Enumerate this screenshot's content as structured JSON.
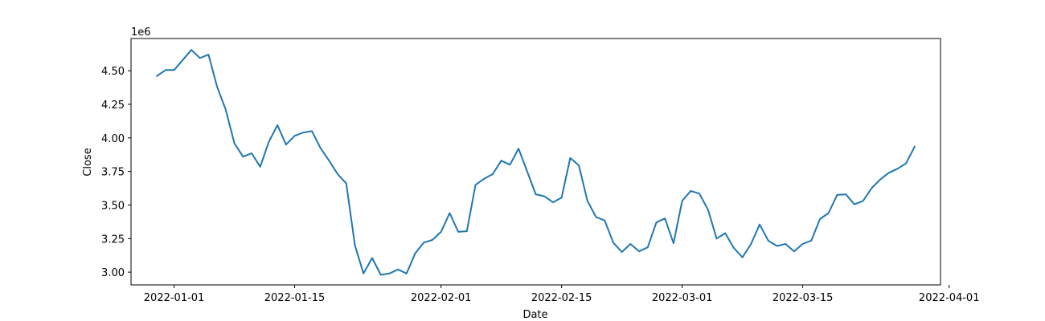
{
  "chart_data": {
    "type": "line",
    "title": "",
    "xlabel": "Date",
    "ylabel": "Close",
    "y_offset_label": "1e6",
    "x_ticks": [
      {
        "date": "2022-01-01",
        "label": "2022-01-01"
      },
      {
        "date": "2022-01-15",
        "label": "2022-01-15"
      },
      {
        "date": "2022-02-01",
        "label": "2022-02-01"
      },
      {
        "date": "2022-02-15",
        "label": "2022-02-15"
      },
      {
        "date": "2022-03-01",
        "label": "2022-03-01"
      },
      {
        "date": "2022-03-15",
        "label": "2022-03-15"
      },
      {
        "date": "2022-04-01",
        "label": "2022-04-01"
      }
    ],
    "y_ticks": [
      {
        "value": 3000000,
        "label": "3.00"
      },
      {
        "value": 3250000,
        "label": "3.25"
      },
      {
        "value": 3500000,
        "label": "3.50"
      },
      {
        "value": 3750000,
        "label": "3.75"
      },
      {
        "value": 4000000,
        "label": "4.00"
      },
      {
        "value": 4250000,
        "label": "4.25"
      },
      {
        "value": 4500000,
        "label": "4.50"
      }
    ],
    "xlim": [
      "2021-12-27",
      "2022-03-31"
    ],
    "ylim": [
      2905000,
      4740000
    ],
    "grid": false,
    "color": "#1f77b4",
    "series": [
      {
        "x": [
          "2021-12-30",
          "2021-12-31",
          "2022-01-01",
          "2022-01-02",
          "2022-01-03",
          "2022-01-04",
          "2022-01-05",
          "2022-01-06",
          "2022-01-07",
          "2022-01-08",
          "2022-01-09",
          "2022-01-10",
          "2022-01-11",
          "2022-01-12",
          "2022-01-13",
          "2022-01-14",
          "2022-01-15",
          "2022-01-16",
          "2022-01-17",
          "2022-01-18",
          "2022-01-19",
          "2022-01-20",
          "2022-01-21",
          "2022-01-22",
          "2022-01-23",
          "2022-01-24",
          "2022-01-25",
          "2022-01-26",
          "2022-01-27",
          "2022-01-28",
          "2022-01-29",
          "2022-01-30",
          "2022-01-31",
          "2022-02-01",
          "2022-02-02",
          "2022-02-03",
          "2022-02-04",
          "2022-02-05",
          "2022-02-06",
          "2022-02-07",
          "2022-02-08",
          "2022-02-09",
          "2022-02-10",
          "2022-02-11",
          "2022-02-12",
          "2022-02-13",
          "2022-02-14",
          "2022-02-15",
          "2022-02-16",
          "2022-02-17",
          "2022-02-18",
          "2022-02-19",
          "2022-02-20",
          "2022-02-21",
          "2022-02-22",
          "2022-02-23",
          "2022-02-24",
          "2022-02-25",
          "2022-02-26",
          "2022-02-27",
          "2022-02-28",
          "2022-03-01",
          "2022-03-02",
          "2022-03-03",
          "2022-03-04",
          "2022-03-05",
          "2022-03-06",
          "2022-03-07",
          "2022-03-08",
          "2022-03-09",
          "2022-03-10",
          "2022-03-11",
          "2022-03-12",
          "2022-03-13",
          "2022-03-14",
          "2022-03-15",
          "2022-03-16",
          "2022-03-17",
          "2022-03-18",
          "2022-03-19",
          "2022-03-20",
          "2022-03-21",
          "2022-03-22",
          "2022-03-23",
          "2022-03-24",
          "2022-03-25",
          "2022-03-26",
          "2022-03-27",
          "2022-03-28"
        ],
        "y": [
          4460000,
          4505000,
          4505000,
          4580000,
          4655000,
          4595000,
          4620000,
          4380000,
          4210000,
          3960000,
          3860000,
          3885000,
          3785000,
          3970000,
          4095000,
          3950000,
          4015000,
          4040000,
          4050000,
          3925000,
          3830000,
          3730000,
          3660000,
          3200000,
          2990000,
          3105000,
          2980000,
          2990000,
          3020000,
          2990000,
          3140000,
          3220000,
          3240000,
          3300000,
          3440000,
          3300000,
          3305000,
          3650000,
          3695000,
          3730000,
          3830000,
          3800000,
          3920000,
          3750000,
          3580000,
          3565000,
          3520000,
          3555000,
          3850000,
          3795000,
          3530000,
          3410000,
          3385000,
          3220000,
          3150000,
          3210000,
          3155000,
          3185000,
          3370000,
          3400000,
          3215000,
          3530000,
          3605000,
          3585000,
          3465000,
          3250000,
          3290000,
          3180000,
          3110000,
          3210000,
          3355000,
          3235000,
          3195000,
          3210000,
          3155000,
          3210000,
          3235000,
          3395000,
          3440000,
          3575000,
          3580000,
          3505000,
          3530000,
          3625000,
          3690000,
          3740000,
          3770000,
          3810000,
          3935000
        ]
      }
    ]
  }
}
